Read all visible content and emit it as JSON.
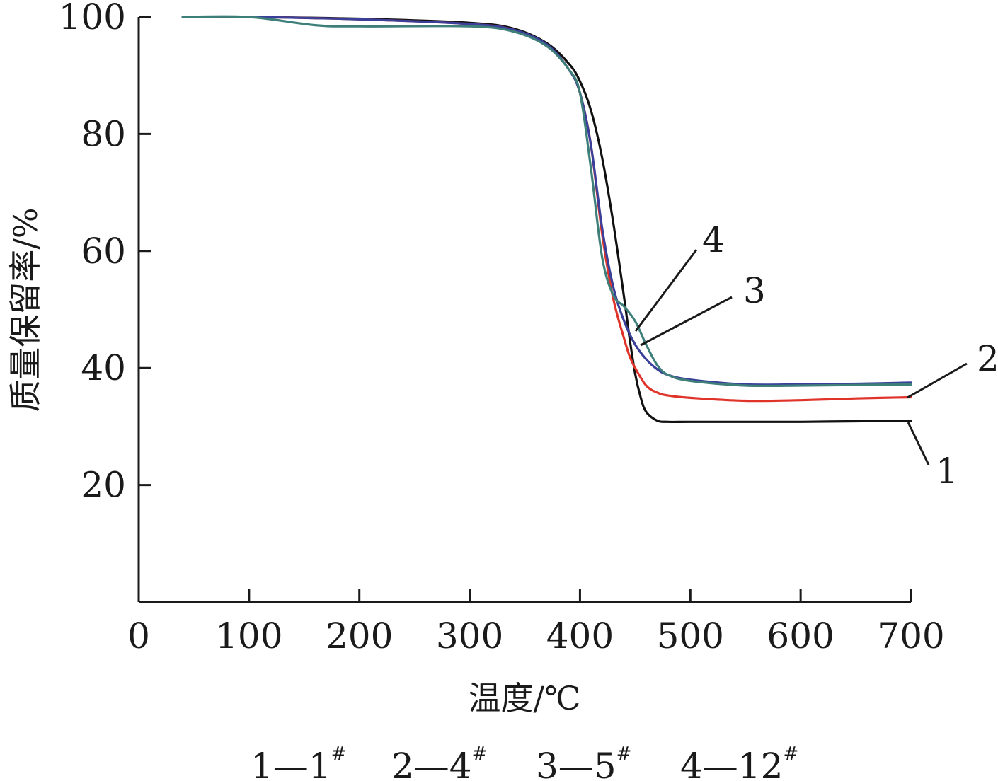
{
  "chart_data": {
    "type": "line",
    "xlabel": "温度/℃",
    "ylabel": "质量保留率/%",
    "xlim": [
      0,
      700
    ],
    "ylim": [
      0,
      100
    ],
    "x_ticks": [
      0,
      100,
      200,
      300,
      400,
      500,
      600,
      700
    ],
    "y_ticks": [
      20,
      40,
      60,
      80,
      100
    ],
    "grid": false,
    "legend": {
      "placement": "bottom",
      "entries": [
        {
          "key": "1",
          "label": "1#"
        },
        {
          "key": "2",
          "label": "4#"
        },
        {
          "key": "3",
          "label": "5#"
        },
        {
          "key": "4",
          "label": "12#"
        }
      ]
    },
    "series": [
      {
        "name": "1",
        "color": "#111111",
        "x": [
          40,
          100,
          200,
          300,
          340,
          370,
          390,
          400,
          410,
          420,
          430,
          440,
          445,
          450,
          455,
          460,
          470,
          480,
          500,
          550,
          600,
          650,
          700
        ],
        "y": [
          100,
          100,
          99.7,
          99,
          98,
          95.5,
          92,
          89,
          84,
          76,
          65,
          52,
          45,
          39,
          35,
          32.5,
          31,
          30.8,
          30.8,
          30.8,
          30.8,
          30.9,
          31
        ]
      },
      {
        "name": "2",
        "color": "#e0342b",
        "x": [
          40,
          100,
          200,
          300,
          340,
          370,
          390,
          400,
          410,
          420,
          430,
          440,
          445,
          450,
          460,
          470,
          480,
          500,
          550,
          600,
          650,
          700
        ],
        "y": [
          100,
          100,
          99.6,
          98.8,
          97.8,
          95.2,
          91,
          87,
          78,
          63,
          52,
          45,
          42,
          40,
          37,
          35.8,
          35.3,
          34.9,
          34.4,
          34.5,
          34.8,
          35
        ]
      },
      {
        "name": "3",
        "color": "#3a3f9a",
        "x": [
          40,
          100,
          200,
          300,
          340,
          370,
          390,
          400,
          410,
          420,
          430,
          440,
          450,
          460,
          470,
          480,
          500,
          550,
          600,
          650,
          700
        ],
        "y": [
          100,
          100,
          99.6,
          98.8,
          97.8,
          95.3,
          91,
          87,
          78,
          64,
          54,
          48,
          44,
          41.5,
          39.8,
          38.8,
          38,
          37.2,
          37.2,
          37.3,
          37.5
        ]
      },
      {
        "name": "4",
        "color": "#3f7f7a",
        "x": [
          40,
          100,
          160,
          200,
          300,
          340,
          370,
          390,
          400,
          410,
          420,
          430,
          440,
          450,
          460,
          470,
          480,
          500,
          550,
          600,
          650,
          700
        ],
        "y": [
          100,
          100,
          98.6,
          98.4,
          98.4,
          97.5,
          95,
          91,
          87,
          74,
          59,
          52.5,
          50.5,
          48,
          44,
          40.5,
          38.8,
          37.8,
          37,
          37,
          37.1,
          37.2
        ]
      }
    ],
    "callouts": [
      {
        "label": "1",
        "series": "1"
      },
      {
        "label": "2",
        "series": "2"
      },
      {
        "label": "3",
        "series": "3"
      },
      {
        "label": "4",
        "series": "4"
      }
    ]
  }
}
